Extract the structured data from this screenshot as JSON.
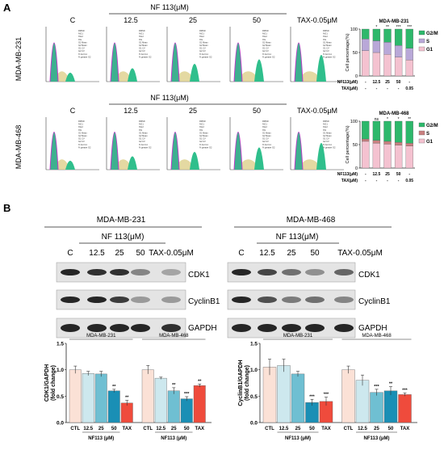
{
  "panel_a": {
    "label": "A",
    "treatment_header": "NF 113(μM)",
    "columns": [
      "C",
      "12.5",
      "25",
      "50",
      "TAX-0.05μM"
    ],
    "row1": {
      "cell_line": "MDA-MB-231"
    },
    "row2": {
      "cell_line": "MDA-MB-468"
    },
    "flow_legend_lines": [
      "RMSD",
      "%G1",
      "%G2",
      "%S",
      "G1 Mean",
      "G2 Mean",
      "G1 CV",
      "G2 CV",
      "% bot G1",
      "% greater G2"
    ]
  },
  "panel_b": {
    "label": "B",
    "blot_left": {
      "cell_line": "MDA-MB-231",
      "treatment_header": "NF 113(μM)",
      "lanes": [
        "C",
        "12.5",
        "25",
        "50",
        "TAX-0.05μM"
      ]
    },
    "blot_right": {
      "cell_line": "MDA-MB-468",
      "treatment_header": "NF 113(μM)",
      "lanes": [
        "C",
        "12.5",
        "25",
        "50",
        "TAX-0.05μM"
      ]
    },
    "proteins": [
      "CDK1",
      "CyclinB1",
      "GAPDH"
    ]
  },
  "chart_data": [
    {
      "type": "bar",
      "stacked": true,
      "title": "MDA-MB-231",
      "categories": [
        "C",
        "12.5",
        "25",
        "50",
        "TAX"
      ],
      "ylabel": "Cell percentage(%)",
      "ylim": [
        0,
        100
      ],
      "yticks": [
        0,
        50,
        100
      ],
      "x_rows": [
        {
          "label": "NF113(μM)",
          "values": [
            "-",
            "12.5",
            "25",
            "50",
            "-"
          ]
        },
        {
          "label": "TAX(μM)",
          "values": [
            "-",
            "-",
            "-",
            "-",
            "0.05"
          ]
        }
      ],
      "series": [
        {
          "name": "G1",
          "color": "#f4c2d0",
          "values": [
            54,
            50,
            46,
            40,
            34
          ]
        },
        {
          "name": "S",
          "color": "#b9a8d8",
          "values": [
            25,
            25,
            26,
            25,
            25
          ]
        },
        {
          "name": "G2/M",
          "color": "#2db86b",
          "values": [
            21,
            25,
            28,
            35,
            41
          ]
        }
      ],
      "significance": [
        "",
        "*",
        "**",
        "***",
        "***"
      ],
      "legend": "right"
    },
    {
      "type": "bar",
      "stacked": true,
      "title": "MDA-MB-468",
      "categories": [
        "C",
        "12.5",
        "25",
        "50",
        "TAX"
      ],
      "ylabel": "Cell percentage(%)",
      "ylim": [
        0,
        100
      ],
      "yticks": [
        0,
        50,
        100
      ],
      "x_rows": [
        {
          "label": "NF113(μM)",
          "values": [
            "-",
            "12.5",
            "25",
            "50",
            "-"
          ]
        },
        {
          "label": "TAX(μM)",
          "values": [
            "-",
            "-",
            "-",
            "-",
            "0.05"
          ]
        }
      ],
      "series": [
        {
          "name": "G1",
          "color": "#f4c2d0",
          "values": [
            57,
            53,
            51,
            49,
            47
          ]
        },
        {
          "name": "S",
          "color": "#c98080",
          "values": [
            5,
            6,
            6,
            6,
            6
          ]
        },
        {
          "name": "G2/M",
          "color": "#2db86b",
          "values": [
            38,
            41,
            43,
            45,
            47
          ]
        }
      ],
      "significance": [
        "",
        "ns",
        "*",
        "*",
        "**"
      ],
      "legend": "right"
    },
    {
      "type": "bar",
      "group_titles": [
        "MDA-MB-231",
        "MDA-MB-468"
      ],
      "categories": [
        "CTL",
        "12.5",
        "25",
        "50",
        "TAX",
        "CTL",
        "12.5",
        "25",
        "50",
        "TAX"
      ],
      "xlabel": "NF113 (μM)",
      "ylabel": "CDK1/GAPDH\n(fold change)",
      "ylim": [
        0,
        1.5
      ],
      "yticks": [
        0.0,
        0.5,
        1.0,
        1.5
      ],
      "colors": [
        "#fbe1d6",
        "#cde8ee",
        "#6fbfd2",
        "#1a8fb5",
        "#ef4b3c"
      ],
      "values": [
        1.0,
        0.93,
        0.92,
        0.6,
        0.37,
        1.0,
        0.84,
        0.6,
        0.45,
        0.7
      ],
      "errors": [
        0.07,
        0.04,
        0.05,
        0.03,
        0.05,
        0.08,
        0.02,
        0.06,
        0.04,
        0.03
      ],
      "significance": [
        "",
        "",
        "",
        "**",
        "**",
        "",
        "",
        "**",
        "***",
        "**"
      ]
    },
    {
      "type": "bar",
      "group_titles": [
        "MDA-MB-231",
        "MDA-MB-468"
      ],
      "categories": [
        "CTL",
        "12.5",
        "25",
        "50",
        "TAX",
        "CTL",
        "12.5",
        "25",
        "50",
        "TAX"
      ],
      "xlabel": "NF113 (μM)",
      "ylabel": "CyclinB1/GAPDH\n(fold change)",
      "ylim": [
        0,
        1.5
      ],
      "yticks": [
        0.0,
        0.5,
        1.0,
        1.5
      ],
      "colors": [
        "#fbe1d6",
        "#cde8ee",
        "#6fbfd2",
        "#1a8fb5",
        "#ef4b3c"
      ],
      "values": [
        1.05,
        1.08,
        0.92,
        0.38,
        0.4,
        1.0,
        0.8,
        0.57,
        0.6,
        0.53
      ],
      "errors": [
        0.15,
        0.12,
        0.05,
        0.06,
        0.08,
        0.07,
        0.1,
        0.06,
        0.08,
        0.03
      ],
      "significance": [
        "",
        "",
        "",
        "***",
        "***",
        "",
        "",
        "***",
        "**",
        "***"
      ]
    }
  ]
}
